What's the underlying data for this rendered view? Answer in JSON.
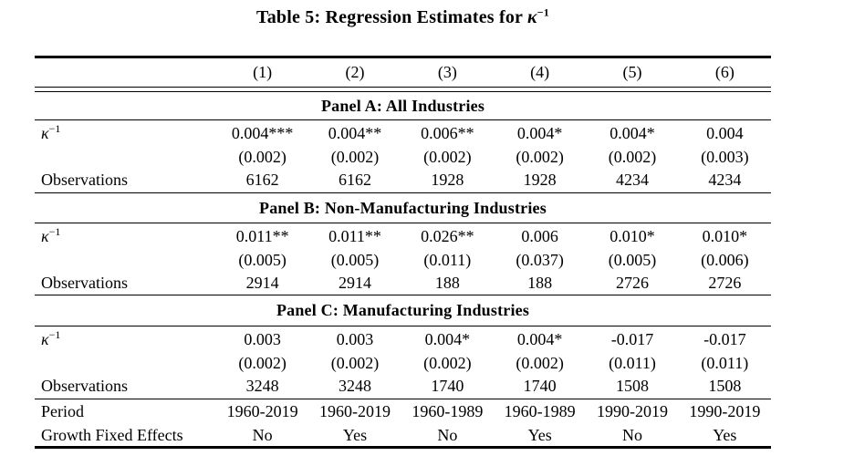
{
  "caption": {
    "prefix": "Table 5: Regression Estimates for ",
    "kappa": "κ",
    "exponent": "−1"
  },
  "columns": [
    "(1)",
    "(2)",
    "(3)",
    "(4)",
    "(5)",
    "(6)"
  ],
  "row_labels": {
    "kappa": "κ",
    "kappa_exponent": "−1",
    "observations": "Observations",
    "period": "Period",
    "growth_fixed_effects": "Growth Fixed Effects"
  },
  "panels": [
    {
      "title": "Panel A: All Industries",
      "coefficients": [
        "0.004***",
        "0.004**",
        "0.006**",
        "0.004*",
        "0.004*",
        "0.004"
      ],
      "std_errors": [
        "(0.002)",
        "(0.002)",
        "(0.002)",
        "(0.002)",
        "(0.002)",
        "(0.003)"
      ],
      "observations": [
        "6162",
        "6162",
        "1928",
        "1928",
        "4234",
        "4234"
      ]
    },
    {
      "title": "Panel B: Non-Manufacturing Industries",
      "coefficients": [
        "0.011**",
        "0.011**",
        "0.026**",
        "0.006",
        "0.010*",
        "0.010*"
      ],
      "std_errors": [
        "(0.005)",
        "(0.005)",
        "(0.011)",
        "(0.037)",
        "(0.005)",
        "(0.006)"
      ],
      "observations": [
        "2914",
        "2914",
        "188",
        "188",
        "2726",
        "2726"
      ]
    },
    {
      "title": "Panel C: Manufacturing Industries",
      "coefficients": [
        "0.003",
        "0.003",
        "0.004*",
        "0.004*",
        "-0.017",
        "-0.017"
      ],
      "std_errors": [
        "(0.002)",
        "(0.002)",
        "(0.002)",
        "(0.002)",
        "(0.011)",
        "(0.011)"
      ],
      "observations": [
        "3248",
        "3248",
        "1740",
        "1740",
        "1508",
        "1508"
      ]
    }
  ],
  "footer": {
    "period": [
      "1960-2019",
      "1960-2019",
      "1960-1989",
      "1960-1989",
      "1990-2019",
      "1990-2019"
    ],
    "growth_fixed_effects": [
      "No",
      "Yes",
      "No",
      "Yes",
      "No",
      "Yes"
    ]
  },
  "colors": {
    "text": "#000000",
    "background": "#ffffff",
    "rule": "#000000"
  }
}
